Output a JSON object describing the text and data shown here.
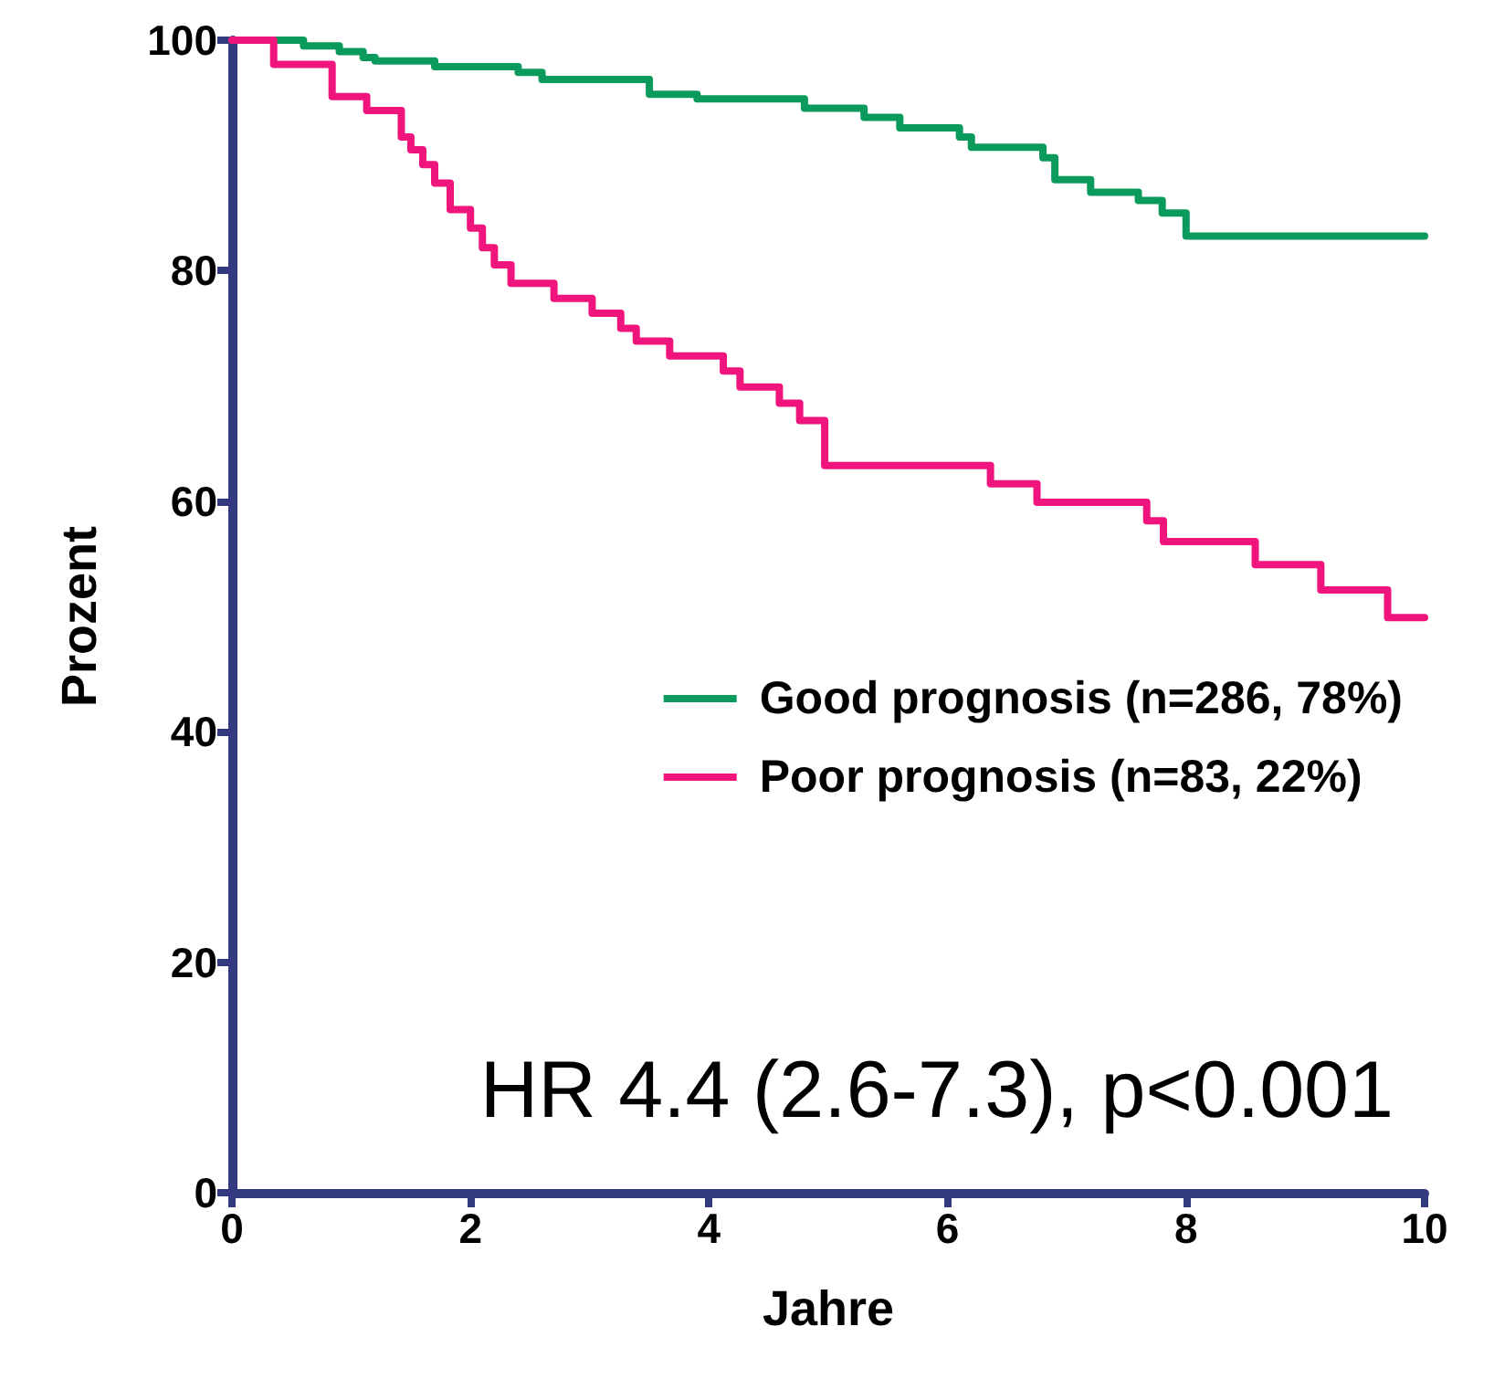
{
  "chart_data": {
    "type": "step",
    "xlabel": "Jahre",
    "ylabel": "Prozent",
    "xlim": [
      0,
      10
    ],
    "xticks": [
      0,
      2,
      4,
      6,
      8,
      10
    ],
    "ylim": [
      0,
      100
    ],
    "yticks": [
      0,
      20,
      40,
      60,
      80,
      100
    ],
    "grid": false,
    "legend": "right",
    "marker": "none",
    "line_style": "solid",
    "annotations": [
      "HR 4.4 (2.6-7.3), p<0.001"
    ],
    "series": [
      {
        "name": "Good prognosis (n=286, 78%)",
        "color": "#0a9a5c",
        "x": [
          0,
          0.6,
          0.9,
          1.1,
          1.2,
          1.7,
          2.4,
          2.6,
          3.5,
          3.9,
          4.8,
          5.3,
          5.6,
          6.1,
          6.2,
          6.8,
          6.9,
          7.2,
          7.6,
          7.8,
          8.0,
          10
        ],
        "values": [
          100,
          99.5,
          99,
          98.5,
          98.2,
          97.7,
          97.2,
          96.6,
          95.3,
          94.9,
          94.1,
          93.3,
          92.4,
          91.6,
          90.7,
          89.8,
          87.9,
          86.8,
          86.1,
          85,
          83,
          83
        ]
      },
      {
        "name": "Poor prognosis (n=83, 22%)",
        "color": "#f0157c",
        "x": [
          0,
          0.35,
          0.84,
          1.13,
          1.42,
          1.5,
          1.6,
          1.7,
          1.83,
          2.0,
          2.1,
          2.2,
          2.34,
          2.7,
          3.02,
          3.26,
          3.39,
          3.67,
          4.12,
          4.26,
          4.59,
          4.76,
          4.97,
          6.36,
          6.75,
          7.67,
          7.81,
          8.58,
          9.13,
          9.69,
          10
        ],
        "values": [
          100,
          97.9,
          95.1,
          93.9,
          91.6,
          90.5,
          89.2,
          87.6,
          85.3,
          83.7,
          82,
          80.5,
          78.9,
          77.6,
          76.3,
          75,
          73.9,
          72.6,
          71.3,
          69.9,
          68.5,
          67,
          63.1,
          61.5,
          59.9,
          58.3,
          56.5,
          54.5,
          52.3,
          49.9,
          49.9
        ]
      }
    ]
  }
}
